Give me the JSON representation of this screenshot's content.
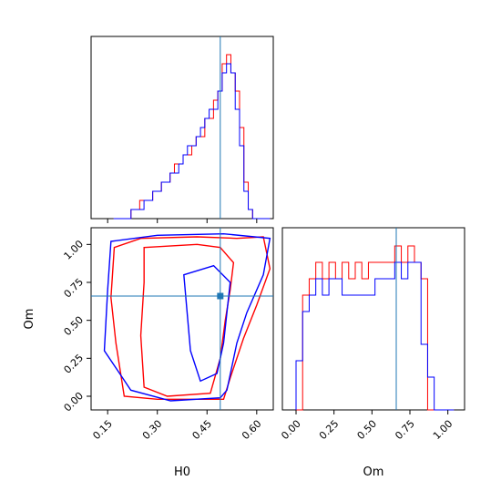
{
  "chart_data": {
    "type": "corner",
    "params": [
      "H0",
      "Om"
    ],
    "xlabels": {
      "H0": "H0",
      "Om": "Om"
    },
    "ylabels": {
      "Om": "Om"
    },
    "truth": {
      "H0": 0.49,
      "Om": 0.66
    },
    "colors": {
      "series_a": "#ff0000",
      "series_b": "#0000ff",
      "truth": "#1f77b4",
      "axes": "#000000"
    },
    "ranges": {
      "H0": [
        0.1,
        0.65
      ],
      "Om": [
        -0.09,
        1.11
      ]
    },
    "ticks": {
      "H0": [
        "0.15",
        "0.30",
        "0.45",
        "0.60"
      ],
      "Om": [
        "0.00",
        "0.25",
        "0.50",
        "0.75",
        "1.00"
      ]
    },
    "hist_H0": {
      "bin_range": [
        0.168,
        0.64
      ],
      "series": [
        {
          "color": "red",
          "counts": [
            0,
            0,
            0,
            0,
            1,
            1,
            2,
            2,
            2,
            3,
            3,
            4,
            4,
            5,
            6,
            6,
            7,
            7,
            8,
            9,
            9,
            11,
            11,
            13,
            14,
            17,
            18,
            16,
            14,
            10,
            4,
            1,
            0,
            0,
            0,
            0
          ]
        },
        {
          "color": "blue",
          "counts": [
            0,
            0,
            0,
            0,
            1,
            1,
            1,
            2,
            2,
            3,
            3,
            4,
            4,
            5,
            5,
            6,
            7,
            8,
            8,
            9,
            10,
            11,
            12,
            12,
            14,
            16,
            17,
            16,
            12,
            8,
            3,
            1,
            0,
            0,
            0,
            0
          ]
        }
      ]
    },
    "hist_Om": {
      "bin_range": [
        0.0,
        1.04
      ],
      "series": [
        {
          "color": "red",
          "counts": [
            0,
            7,
            8,
            9,
            8,
            9,
            8,
            9,
            8,
            9,
            8,
            9,
            9,
            9,
            9,
            10,
            9,
            10,
            9,
            8,
            0,
            0,
            0,
            0
          ]
        },
        {
          "color": "blue",
          "counts": [
            3,
            6,
            7,
            8,
            7,
            8,
            8,
            7,
            7,
            7,
            7,
            7,
            8,
            8,
            8,
            9,
            8,
            9,
            9,
            4,
            2,
            0,
            0,
            0
          ]
        }
      ]
    },
    "contours": [
      {
        "color": "red",
        "levels": [
          [
            [
              0.17,
              0.98
            ],
            [
              0.25,
              1.04
            ],
            [
              0.42,
              1.05
            ],
            [
              0.54,
              1.04
            ],
            [
              0.62,
              1.05
            ],
            [
              0.64,
              0.84
            ],
            [
              0.6,
              0.6
            ],
            [
              0.56,
              0.38
            ],
            [
              0.52,
              0.12
            ],
            [
              0.5,
              -0.02
            ],
            [
              0.3,
              -0.02
            ],
            [
              0.2,
              0.0
            ],
            [
              0.175,
              0.35
            ],
            [
              0.16,
              0.65
            ]
          ],
          [
            [
              0.26,
              0.98
            ],
            [
              0.42,
              1.0
            ],
            [
              0.49,
              0.98
            ],
            [
              0.53,
              0.88
            ],
            [
              0.52,
              0.7
            ],
            [
              0.505,
              0.5
            ],
            [
              0.49,
              0.25
            ],
            [
              0.46,
              0.02
            ],
            [
              0.33,
              0.0
            ],
            [
              0.26,
              0.06
            ],
            [
              0.25,
              0.4
            ],
            [
              0.26,
              0.75
            ]
          ]
        ]
      },
      {
        "color": "blue",
        "levels": [
          [
            [
              0.16,
              1.02
            ],
            [
              0.3,
              1.06
            ],
            [
              0.5,
              1.07
            ],
            [
              0.64,
              1.04
            ],
            [
              0.62,
              0.8
            ],
            [
              0.57,
              0.55
            ],
            [
              0.54,
              0.35
            ],
            [
              0.51,
              0.04
            ],
            [
              0.49,
              -0.01
            ],
            [
              0.34,
              -0.03
            ],
            [
              0.22,
              0.04
            ],
            [
              0.14,
              0.3
            ],
            [
              0.15,
              0.7
            ]
          ],
          [
            [
              0.38,
              0.8
            ],
            [
              0.47,
              0.86
            ],
            [
              0.52,
              0.75
            ],
            [
              0.51,
              0.55
            ],
            [
              0.5,
              0.35
            ],
            [
              0.48,
              0.15
            ],
            [
              0.43,
              0.1
            ],
            [
              0.4,
              0.3
            ],
            [
              0.39,
              0.55
            ]
          ]
        ]
      }
    ]
  }
}
